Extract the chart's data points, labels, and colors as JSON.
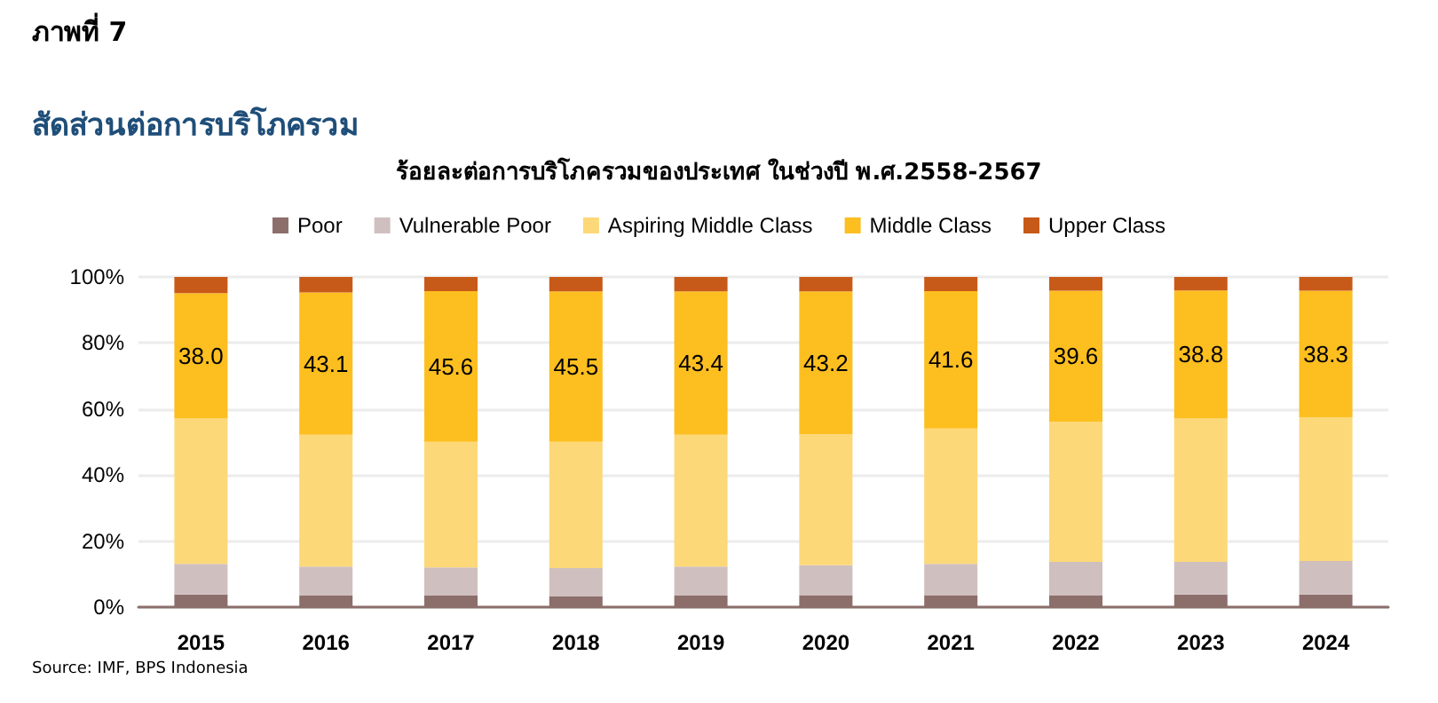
{
  "chart_data": {
    "type": "bar",
    "title": "ภาพที่ 7",
    "subtitle": "สัดส่วนต่อการบริโภครวม",
    "annotations": [
      "ร้อยละต่อการบริโภครวมของประเทศ ในช่วงปี พ.ศ.2558-2567",
      "Source: IMF, BPS Indonesia"
    ],
    "categories": [
      "2015",
      "2016",
      "2017",
      "2018",
      "2019",
      "2020",
      "2021",
      "2022",
      "2023",
      "2024"
    ],
    "stacked": true,
    "series": [
      {
        "name": "Poor",
        "color": "#8c6e6b",
        "values": [
          3.8,
          3.5,
          3.5,
          3.2,
          3.5,
          3.6,
          3.6,
          3.6,
          3.8,
          3.8
        ]
      },
      {
        "name": "Vulnerable Poor",
        "color": "#cfc0bf",
        "values": [
          9.3,
          8.8,
          8.5,
          8.6,
          8.8,
          9.1,
          9.5,
          10.1,
          9.9,
          10.2
        ]
      },
      {
        "name": "Aspiring Middle Class",
        "color": "#fdd878",
        "values": [
          44.0,
          39.9,
          38.1,
          38.3,
          39.9,
          39.7,
          41.0,
          42.5,
          43.4,
          43.5
        ]
      },
      {
        "name": "Middle Class",
        "color": "#fdbe20",
        "values": [
          38.0,
          43.1,
          45.6,
          45.5,
          43.4,
          43.2,
          41.6,
          39.6,
          38.8,
          38.3
        ],
        "value_labels": [
          "38.0",
          "43.1",
          "45.6",
          "45.5",
          "43.4",
          "43.2",
          "41.6",
          "39.6",
          "38.8",
          "38.3"
        ]
      },
      {
        "name": "Upper Class",
        "color": "#c85a19",
        "values": [
          4.9,
          4.7,
          4.3,
          4.4,
          4.4,
          4.4,
          4.3,
          4.2,
          4.1,
          4.2
        ]
      }
    ],
    "ylim": [
      0,
      100
    ],
    "yticks": [
      {
        "value": 0,
        "label": "0%"
      },
      {
        "value": 20,
        "label": "20%"
      },
      {
        "value": 40,
        "label": "40%"
      },
      {
        "value": 60,
        "label": "60%"
      },
      {
        "value": 80,
        "label": "80%"
      },
      {
        "value": 100,
        "label": "100%"
      }
    ],
    "grid": "y",
    "legend": "top"
  }
}
